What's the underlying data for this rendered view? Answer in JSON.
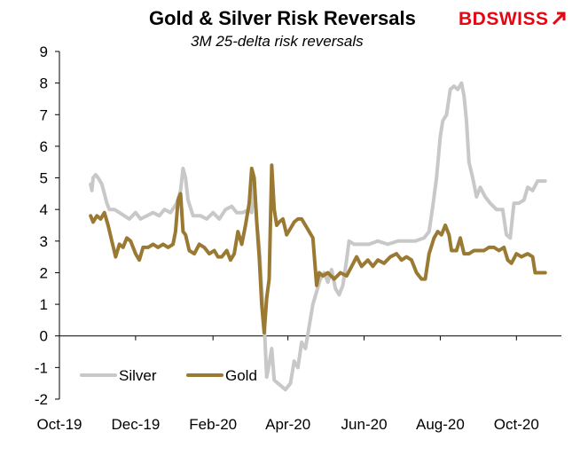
{
  "header": {
    "title": "Gold & Silver Risk Reversals",
    "subtitle": "3M 25-delta risk reversals",
    "logo_text": "BDSWISS"
  },
  "colors": {
    "silver": "#c8c8c8",
    "gold": "#9a7a32",
    "axis": "#000000",
    "logo": "#e30613"
  },
  "chart_data": {
    "type": "line",
    "title": "Gold & Silver Risk Reversals",
    "subtitle": "3M 25-delta risk reversals",
    "ylim": [
      -2,
      9
    ],
    "yticks": [
      -2,
      -1,
      0,
      1,
      2,
      3,
      4,
      5,
      6,
      7,
      8,
      9
    ],
    "xlim": [
      "2019-10-01",
      "2020-11-06"
    ],
    "xticks": [
      {
        "date": "2019-10-01",
        "label": "Oct-19"
      },
      {
        "date": "2019-12-01",
        "label": "Dec-19"
      },
      {
        "date": "2020-02-01",
        "label": "Feb-20"
      },
      {
        "date": "2020-04-01",
        "label": "Apr-20"
      },
      {
        "date": "2020-06-01",
        "label": "Jun-20"
      },
      {
        "date": "2020-08-01",
        "label": "Aug-20"
      },
      {
        "date": "2020-10-01",
        "label": "Oct-20"
      }
    ],
    "grid": false,
    "legend": "bottom-left",
    "series": [
      {
        "name": "Silver",
        "points": [
          [
            "2019-10-26",
            4.8
          ],
          [
            "2019-10-27",
            4.6
          ],
          [
            "2019-10-28",
            5.0
          ],
          [
            "2019-10-30",
            5.1
          ],
          [
            "2019-11-01",
            5.0
          ],
          [
            "2019-11-04",
            4.8
          ],
          [
            "2019-11-06",
            4.5
          ],
          [
            "2019-11-08",
            4.2
          ],
          [
            "2019-11-10",
            4.0
          ],
          [
            "2019-11-14",
            4.0
          ],
          [
            "2019-11-18",
            3.9
          ],
          [
            "2019-11-22",
            3.8
          ],
          [
            "2019-11-26",
            3.7
          ],
          [
            "2019-12-01",
            3.9
          ],
          [
            "2019-12-05",
            3.7
          ],
          [
            "2019-12-10",
            3.8
          ],
          [
            "2019-12-15",
            3.9
          ],
          [
            "2019-12-20",
            3.8
          ],
          [
            "2019-12-24",
            4.0
          ],
          [
            "2019-12-29",
            3.9
          ],
          [
            "2020-01-03",
            4.2
          ],
          [
            "2020-01-06",
            4.6
          ],
          [
            "2020-01-08",
            5.3
          ],
          [
            "2020-01-10",
            5.0
          ],
          [
            "2020-01-12",
            4.3
          ],
          [
            "2020-01-16",
            3.8
          ],
          [
            "2020-01-22",
            3.8
          ],
          [
            "2020-01-27",
            3.7
          ],
          [
            "2020-02-01",
            3.9
          ],
          [
            "2020-02-06",
            3.7
          ],
          [
            "2020-02-11",
            4.0
          ],
          [
            "2020-02-16",
            4.1
          ],
          [
            "2020-02-20",
            3.9
          ],
          [
            "2020-02-25",
            3.9
          ],
          [
            "2020-03-01",
            4.0
          ],
          [
            "2020-03-03",
            3.9
          ],
          [
            "2020-03-05",
            4.8
          ],
          [
            "2020-03-07",
            3.6
          ],
          [
            "2020-03-09",
            2.8
          ],
          [
            "2020-03-11",
            1.5
          ],
          [
            "2020-03-13",
            0.4
          ],
          [
            "2020-03-15",
            -1.3
          ],
          [
            "2020-03-17",
            -0.9
          ],
          [
            "2020-03-19",
            -0.4
          ],
          [
            "2020-03-21",
            -1.4
          ],
          [
            "2020-03-24",
            -1.5
          ],
          [
            "2020-03-27",
            -1.6
          ],
          [
            "2020-03-30",
            -1.7
          ],
          [
            "2020-04-03",
            -1.5
          ],
          [
            "2020-04-06",
            -0.8
          ],
          [
            "2020-04-09",
            -1.0
          ],
          [
            "2020-04-12",
            -0.2
          ],
          [
            "2020-04-15",
            -0.4
          ],
          [
            "2020-04-18",
            0.3
          ],
          [
            "2020-04-21",
            1.0
          ],
          [
            "2020-04-24",
            1.4
          ],
          [
            "2020-04-27",
            1.8
          ],
          [
            "2020-04-30",
            2.0
          ],
          [
            "2020-05-03",
            1.7
          ],
          [
            "2020-05-06",
            2.1
          ],
          [
            "2020-05-09",
            1.5
          ],
          [
            "2020-05-12",
            1.3
          ],
          [
            "2020-05-15",
            1.6
          ],
          [
            "2020-05-18",
            2.4
          ],
          [
            "2020-05-20",
            3.0
          ],
          [
            "2020-05-24",
            2.9
          ],
          [
            "2020-05-29",
            2.9
          ],
          [
            "2020-06-05",
            2.9
          ],
          [
            "2020-06-12",
            3.0
          ],
          [
            "2020-06-20",
            2.9
          ],
          [
            "2020-06-28",
            3.0
          ],
          [
            "2020-07-05",
            3.0
          ],
          [
            "2020-07-12",
            3.0
          ],
          [
            "2020-07-19",
            3.1
          ],
          [
            "2020-07-23",
            3.3
          ],
          [
            "2020-07-26",
            4.1
          ],
          [
            "2020-07-29",
            5.0
          ],
          [
            "2020-08-01",
            6.3
          ],
          [
            "2020-08-03",
            6.8
          ],
          [
            "2020-08-06",
            7.0
          ],
          [
            "2020-08-09",
            7.8
          ],
          [
            "2020-08-12",
            7.9
          ],
          [
            "2020-08-15",
            7.8
          ],
          [
            "2020-08-18",
            8.0
          ],
          [
            "2020-08-20",
            7.6
          ],
          [
            "2020-08-22",
            6.8
          ],
          [
            "2020-08-24",
            5.5
          ],
          [
            "2020-08-27",
            5.0
          ],
          [
            "2020-08-30",
            4.4
          ],
          [
            "2020-09-02",
            4.7
          ],
          [
            "2020-09-06",
            4.4
          ],
          [
            "2020-09-10",
            4.2
          ],
          [
            "2020-09-15",
            4.0
          ],
          [
            "2020-09-20",
            4.0
          ],
          [
            "2020-09-23",
            3.2
          ],
          [
            "2020-09-26",
            3.1
          ],
          [
            "2020-09-29",
            4.2
          ],
          [
            "2020-10-03",
            4.2
          ],
          [
            "2020-10-07",
            4.3
          ],
          [
            "2020-10-10",
            4.7
          ],
          [
            "2020-10-14",
            4.6
          ],
          [
            "2020-10-18",
            4.9
          ],
          [
            "2020-10-24",
            4.9
          ]
        ]
      },
      {
        "name": "Gold",
        "points": [
          [
            "2019-10-26",
            3.8
          ],
          [
            "2019-10-28",
            3.6
          ],
          [
            "2019-10-31",
            3.8
          ],
          [
            "2019-11-03",
            3.7
          ],
          [
            "2019-11-06",
            3.9
          ],
          [
            "2019-11-09",
            3.5
          ],
          [
            "2019-11-12",
            3.0
          ],
          [
            "2019-11-15",
            2.5
          ],
          [
            "2019-11-18",
            2.9
          ],
          [
            "2019-11-21",
            2.8
          ],
          [
            "2019-11-24",
            3.1
          ],
          [
            "2019-11-27",
            3.0
          ],
          [
            "2019-12-01",
            2.6
          ],
          [
            "2019-12-04",
            2.4
          ],
          [
            "2019-12-07",
            2.8
          ],
          [
            "2019-12-11",
            2.8
          ],
          [
            "2019-12-15",
            2.9
          ],
          [
            "2019-12-19",
            2.8
          ],
          [
            "2019-12-23",
            2.9
          ],
          [
            "2019-12-27",
            2.8
          ],
          [
            "2019-12-31",
            2.9
          ],
          [
            "2020-01-02",
            3.3
          ],
          [
            "2020-01-04",
            4.3
          ],
          [
            "2020-01-06",
            4.5
          ],
          [
            "2020-01-08",
            3.3
          ],
          [
            "2020-01-10",
            3.2
          ],
          [
            "2020-01-13",
            2.7
          ],
          [
            "2020-01-17",
            2.6
          ],
          [
            "2020-01-21",
            2.9
          ],
          [
            "2020-01-25",
            2.8
          ],
          [
            "2020-01-29",
            2.6
          ],
          [
            "2020-02-02",
            2.7
          ],
          [
            "2020-02-05",
            2.5
          ],
          [
            "2020-02-08",
            2.5
          ],
          [
            "2020-02-12",
            2.7
          ],
          [
            "2020-02-15",
            2.4
          ],
          [
            "2020-02-18",
            2.6
          ],
          [
            "2020-02-21",
            3.3
          ],
          [
            "2020-02-24",
            2.9
          ],
          [
            "2020-02-27",
            3.5
          ],
          [
            "2020-03-01",
            4.2
          ],
          [
            "2020-03-03",
            5.3
          ],
          [
            "2020-03-05",
            5.0
          ],
          [
            "2020-03-07",
            3.6
          ],
          [
            "2020-03-09",
            2.5
          ],
          [
            "2020-03-11",
            1.0
          ],
          [
            "2020-03-13",
            0.1
          ],
          [
            "2020-03-15",
            1.2
          ],
          [
            "2020-03-17",
            1.8
          ],
          [
            "2020-03-19",
            5.4
          ],
          [
            "2020-03-21",
            4.0
          ],
          [
            "2020-03-23",
            3.5
          ],
          [
            "2020-03-25",
            3.6
          ],
          [
            "2020-03-28",
            3.7
          ],
          [
            "2020-03-31",
            3.2
          ],
          [
            "2020-04-03",
            3.4
          ],
          [
            "2020-04-06",
            3.6
          ],
          [
            "2020-04-09",
            3.7
          ],
          [
            "2020-04-12",
            3.7
          ],
          [
            "2020-04-15",
            3.5
          ],
          [
            "2020-04-18",
            3.3
          ],
          [
            "2020-04-21",
            3.1
          ],
          [
            "2020-04-24",
            1.6
          ],
          [
            "2020-04-26",
            2.0
          ],
          [
            "2020-04-29",
            1.9
          ],
          [
            "2020-05-03",
            2.0
          ],
          [
            "2020-05-08",
            1.8
          ],
          [
            "2020-05-13",
            2.0
          ],
          [
            "2020-05-18",
            1.9
          ],
          [
            "2020-05-22",
            2.2
          ],
          [
            "2020-05-26",
            2.5
          ],
          [
            "2020-05-30",
            2.2
          ],
          [
            "2020-06-04",
            2.4
          ],
          [
            "2020-06-08",
            2.2
          ],
          [
            "2020-06-12",
            2.4
          ],
          [
            "2020-06-17",
            2.3
          ],
          [
            "2020-06-22",
            2.5
          ],
          [
            "2020-06-27",
            2.6
          ],
          [
            "2020-07-01",
            2.4
          ],
          [
            "2020-07-05",
            2.5
          ],
          [
            "2020-07-09",
            2.4
          ],
          [
            "2020-07-13",
            2.0
          ],
          [
            "2020-07-17",
            1.8
          ],
          [
            "2020-07-20",
            1.8
          ],
          [
            "2020-07-23",
            2.6
          ],
          [
            "2020-07-27",
            3.1
          ],
          [
            "2020-07-30",
            3.3
          ],
          [
            "2020-08-02",
            3.2
          ],
          [
            "2020-08-05",
            3.5
          ],
          [
            "2020-08-08",
            3.2
          ],
          [
            "2020-08-10",
            2.7
          ],
          [
            "2020-08-14",
            2.7
          ],
          [
            "2020-08-17",
            3.1
          ],
          [
            "2020-08-20",
            2.6
          ],
          [
            "2020-08-24",
            2.6
          ],
          [
            "2020-08-28",
            2.7
          ],
          [
            "2020-09-01",
            2.7
          ],
          [
            "2020-09-05",
            2.7
          ],
          [
            "2020-09-09",
            2.8
          ],
          [
            "2020-09-13",
            2.8
          ],
          [
            "2020-09-17",
            2.7
          ],
          [
            "2020-09-21",
            2.8
          ],
          [
            "2020-09-24",
            2.4
          ],
          [
            "2020-09-27",
            2.3
          ],
          [
            "2020-10-01",
            2.6
          ],
          [
            "2020-10-05",
            2.5
          ],
          [
            "2020-10-10",
            2.6
          ],
          [
            "2020-10-14",
            2.5
          ],
          [
            "2020-10-16",
            2.0
          ],
          [
            "2020-10-24",
            2.0
          ]
        ]
      }
    ]
  }
}
